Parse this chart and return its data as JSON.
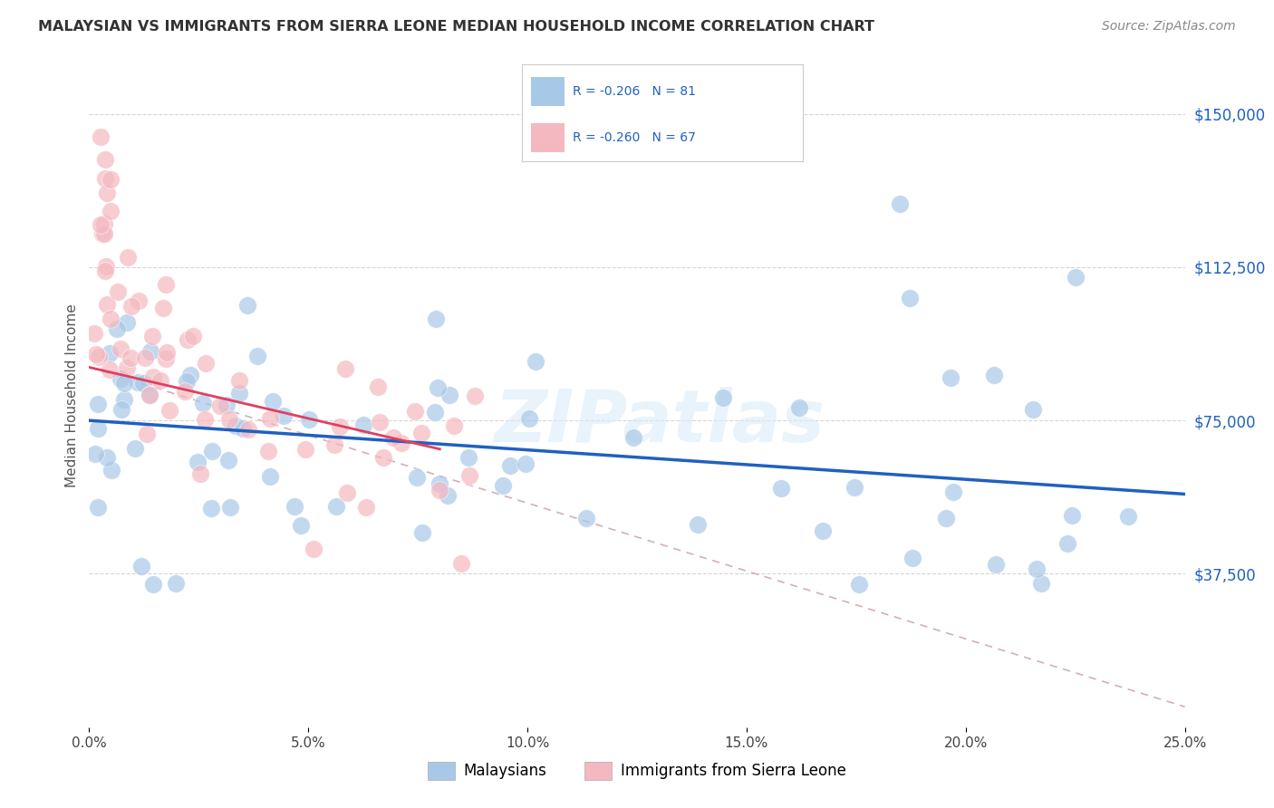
{
  "title": "MALAYSIAN VS IMMIGRANTS FROM SIERRA LEONE MEDIAN HOUSEHOLD INCOME CORRELATION CHART",
  "source": "Source: ZipAtlas.com",
  "ylabel": "Median Household Income",
  "ytick_labels": [
    "$37,500",
    "$75,000",
    "$112,500",
    "$150,000"
  ],
  "ytick_values": [
    37500,
    75000,
    112500,
    150000
  ],
  "ylim": [
    0,
    162000
  ],
  "xlim": [
    0.0,
    0.25
  ],
  "xtick_vals": [
    0.0,
    0.05,
    0.1,
    0.15,
    0.2,
    0.25
  ],
  "xtick_labels": [
    "0.0%",
    "5.0%",
    "10.0%",
    "15.0%",
    "20.0%",
    "25.0%"
  ],
  "legend_text_blue": "R = -0.206   N = 81",
  "legend_text_pink": "R = -0.260   N = 67",
  "legend_label_blue": "Malaysians",
  "legend_label_pink": "Immigrants from Sierra Leone",
  "blue_color": "#a8c8e8",
  "pink_color": "#f4b8c0",
  "blue_line_color": "#2060c0",
  "pink_line_color": "#e04060",
  "dashed_line_color": "#d0b0b8",
  "watermark": "ZIPatlas",
  "blue_line_x": [
    0.0,
    0.25
  ],
  "blue_line_y": [
    75000,
    57000
  ],
  "pink_line_x": [
    0.0,
    0.08
  ],
  "pink_line_y": [
    88000,
    68000
  ],
  "dash_line_x": [
    0.0,
    0.25
  ],
  "dash_line_y": [
    88000,
    5000
  ]
}
